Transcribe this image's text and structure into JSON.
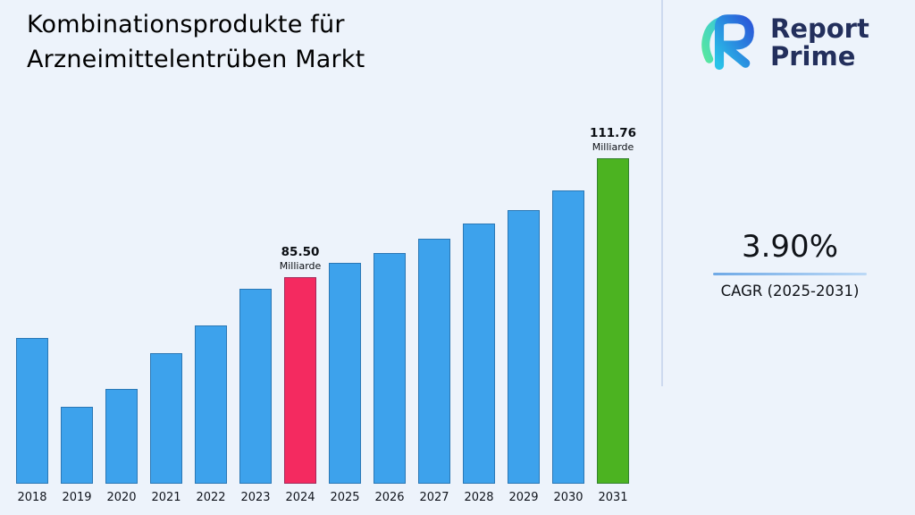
{
  "title": {
    "line1": "Kombinationsprodukte für",
    "line2": "Arzneimittelentrüben Markt"
  },
  "logo": {
    "line1": "Report",
    "line2": "Prime"
  },
  "cagr": {
    "value": "3.90%",
    "label": "CAGR (2025-2031)"
  },
  "chart_data": {
    "type": "bar",
    "title": "Kombinationsprodukte für Arzneimittelentrüben Markt",
    "xlabel": "",
    "ylabel": "",
    "unit": "Milliarde",
    "categories": [
      "2018",
      "2019",
      "2020",
      "2021",
      "2022",
      "2023",
      "2024",
      "2025",
      "2026",
      "2027",
      "2028",
      "2029",
      "2030",
      "2031"
    ],
    "values": [
      72.1,
      57.0,
      60.9,
      68.9,
      74.9,
      83.0,
      85.5,
      88.8,
      91.0,
      94.0,
      97.4,
      100.4,
      104.7,
      111.76
    ],
    "ylim": [
      40,
      115
    ],
    "grid": false,
    "legend": "none",
    "annotations": [
      {
        "category": "2024",
        "value_label": "85.50",
        "unit_label": "Milliarde"
      },
      {
        "category": "2031",
        "value_label": "111.76",
        "unit_label": "Milliarde"
      }
    ],
    "colors": {
      "default": "#3da2ec",
      "2024": "#f42a60",
      "2031": "#4cb321"
    }
  }
}
